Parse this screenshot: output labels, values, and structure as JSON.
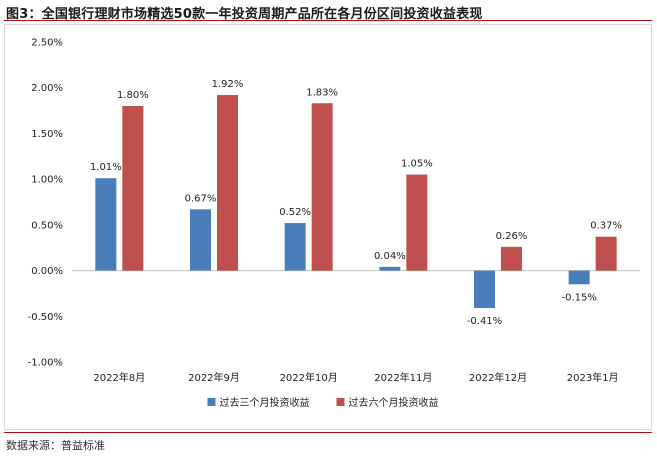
{
  "header": {
    "title": "图3：全国银行理财市场精选50款一年投资周期产品所在各月份区间投资收益表现"
  },
  "footer": {
    "source": "数据来源：普益标准"
  },
  "colors": {
    "series1": "#4a7ebb",
    "series2": "#c0504d",
    "accent_rule": "#b30d16"
  },
  "chart_data": {
    "type": "bar",
    "title": "",
    "xlabel": "",
    "ylabel": "",
    "ylim": [
      -0.01,
      0.025
    ],
    "yticks": [
      -0.01,
      -0.005,
      0,
      0.005,
      0.01,
      0.015,
      0.02,
      0.025
    ],
    "ytick_labels": [
      "-1.00%",
      "-0.50%",
      "0.00%",
      "0.50%",
      "1.00%",
      "1.50%",
      "2.00%",
      "2.50%"
    ],
    "categories": [
      "2022年8月",
      "2022年9月",
      "2022年10月",
      "2022年11月",
      "2022年12月",
      "2023年1月"
    ],
    "series": [
      {
        "name": "过去三个月投资收益",
        "values": [
          0.0101,
          0.0067,
          0.0052,
          0.0004,
          -0.0041,
          -0.0015
        ],
        "labels": [
          "1.01%",
          "0.67%",
          "0.52%",
          "0.04%",
          "-0.41%",
          "-0.15%"
        ]
      },
      {
        "name": "过去六个月投资收益",
        "values": [
          0.018,
          0.0192,
          0.0183,
          0.0105,
          0.0026,
          0.0037
        ],
        "labels": [
          "1.80%",
          "1.92%",
          "1.83%",
          "1.05%",
          "0.26%",
          "0.37%"
        ]
      }
    ],
    "legend_position": "bottom-center",
    "grid": false
  }
}
